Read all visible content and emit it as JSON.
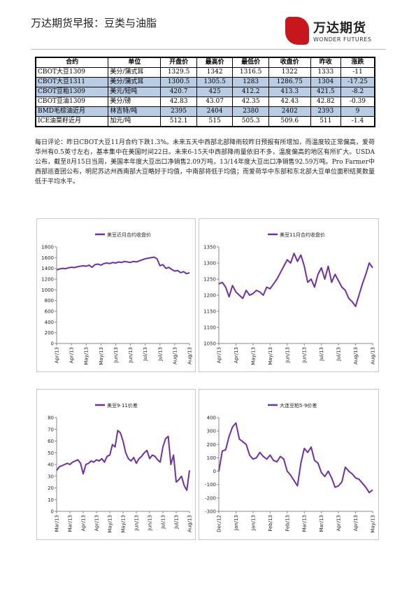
{
  "header": {
    "title": "万达期货早报：豆类与油脂",
    "logo": "万达期货",
    "logo_en": "WONDER FUTURES"
  },
  "table": {
    "headers": [
      "合约",
      "单位",
      "开盘价",
      "最高价",
      "最低价",
      "收盘价",
      "昨收",
      "涨跌"
    ],
    "rows": [
      [
        "CBOT大豆1309",
        "美分/蒲式耳",
        1329.5,
        1342,
        1316.5,
        1322,
        1333,
        -11
      ],
      [
        "CBOT大豆1311",
        "美分/蒲式耳",
        1300.5,
        1305.5,
        1283,
        1286.75,
        1304,
        -17.25
      ],
      [
        "CBOT豆粕1309",
        "美元/短吨",
        420.7,
        425,
        412.2,
        413.3,
        421.5,
        -8.2
      ],
      [
        "CBOT豆油1309",
        "美分/磅",
        42.83,
        43.07,
        42.35,
        42.43,
        42.82,
        -0.39
      ],
      [
        "BMD毛棕油近月",
        "林吉特/吨",
        2395,
        2404,
        2380,
        2402,
        2393,
        9
      ],
      [
        "ICE油菜籽近月",
        "加元/吨",
        512.1,
        515,
        505.3,
        509.6,
        511,
        -1.4
      ]
    ]
  },
  "comment": "每日评论：昨日CBOT大豆11月合约下跌1.3%。未来五天中西部北部降雨较昨日预报有所增加，而温度较正常偏高，爱荷华州有0.5英寸左右，基本集中在美国时间22日。未来6-15天中西部降雨量依旧不多，温度偏高的地区有所扩大。USDA公布，截至8月15日当周，美国本年度大豆出口净销售2.09万吨，13/14年度大豆出口净销售92.59万吨。Pro Farmer中西部巡查团公布，明尼苏达州西南部大豆略好于均值，中南部将低于均值；而爱荷华中东部和东北部大豆单位面积结荚数量低于平均水平。",
  "chart_data": [
    {
      "type": "line",
      "categories": [
        "Apr/13",
        null,
        null,
        null,
        null,
        "Apr/13",
        null,
        null,
        null,
        null,
        "May/13",
        null,
        null,
        null,
        null,
        "May/13",
        null,
        null,
        null,
        null,
        "Jun/13",
        null,
        null,
        null,
        null,
        "Jun/13",
        null,
        null,
        null,
        null,
        "Jul/13",
        null,
        null,
        null,
        null,
        "Jul/13",
        null,
        null,
        null,
        null,
        "Aug/13",
        null,
        null,
        null,
        null,
        "Aug/13"
      ],
      "series": [
        {
          "name": "美豆近月合约收盘价",
          "color": "#7030a0",
          "values": [
            1370,
            1390,
            1400,
            1395,
            1410,
            1420,
            1415,
            1430,
            1440,
            1450,
            1440,
            1460,
            1420,
            1470,
            1480,
            1460,
            1490,
            1500,
            1490,
            1510,
            1500,
            1520,
            1510,
            1530,
            1520,
            1510,
            1530,
            1520,
            1540,
            1560,
            1580,
            1590,
            1600,
            1610,
            1580,
            1450,
            1470,
            1400,
            1420,
            1380,
            1350,
            1360,
            1320,
            1340,
            1300,
            1320
          ]
        }
      ],
      "ylim": [
        0,
        1800
      ],
      "yticks": [
        0,
        200,
        400,
        600,
        800,
        1000,
        1200,
        1400,
        1600,
        1800
      ]
    },
    {
      "type": "line",
      "categories": [
        "Apr/13",
        null,
        null,
        null,
        null,
        "Apr/13",
        null,
        null,
        null,
        null,
        "May/13",
        null,
        null,
        null,
        null,
        "May/13",
        null,
        null,
        null,
        null,
        "Jun/13",
        null,
        null,
        null,
        null,
        "Jun/13",
        null,
        null,
        null,
        null,
        "Jul/13",
        null,
        null,
        null,
        null,
        "Jul/13",
        null,
        null,
        null,
        null,
        "Aug/13",
        null,
        null,
        null,
        null,
        "Aug/13"
      ],
      "series": [
        {
          "name": "美豆11月合约收盘价",
          "color": "#7030a0",
          "values": [
            1235,
            1240,
            1225,
            1195,
            1230,
            1210,
            1200,
            1190,
            1215,
            1200,
            1205,
            1215,
            1210,
            1200,
            1225,
            1220,
            1235,
            1250,
            1270,
            1290,
            1310,
            1300,
            1330,
            1305,
            1325,
            1290,
            1240,
            1250,
            1225,
            1265,
            1285,
            1250,
            1290,
            1240,
            1265,
            1245,
            1225,
            1215,
            1190,
            1180,
            1165,
            1200,
            1235,
            1265,
            1300,
            1285
          ]
        }
      ],
      "ylim": [
        1050,
        1350
      ],
      "yticks": [
        1050,
        1100,
        1150,
        1200,
        1250,
        1300,
        1350
      ]
    },
    {
      "type": "line",
      "categories": [
        "Mar/13",
        null,
        null,
        null,
        null,
        "Mar/13",
        null,
        null,
        null,
        null,
        "Apr/13",
        null,
        null,
        null,
        null,
        "Apr/13",
        null,
        null,
        null,
        null,
        "May/13",
        null,
        null,
        null,
        null,
        "May/13",
        null,
        null,
        null,
        null,
        "Jun/13",
        null,
        null,
        null,
        null,
        "Jun/13",
        null,
        null,
        null,
        null,
        "Jul/13",
        null,
        null,
        null,
        null,
        "Jul/13",
        null,
        null,
        null,
        null,
        "Aug/13"
      ],
      "series": [
        {
          "name": "美豆9-11价差",
          "color": "#7030a0",
          "values": [
            35,
            38,
            39,
            40,
            41,
            40,
            42,
            43,
            44,
            41,
            32,
            40,
            41,
            43,
            42,
            44,
            43,
            45,
            42,
            47,
            48,
            57,
            55,
            69,
            67,
            60,
            50,
            45,
            43,
            46,
            41,
            45,
            47,
            50,
            52,
            45,
            48,
            47,
            44,
            42,
            55,
            62,
            64,
            40,
            48,
            25,
            27,
            30,
            22,
            18,
            35
          ]
        }
      ],
      "ylim": [
        0,
        80
      ],
      "yticks": [
        0,
        10,
        20,
        30,
        40,
        50,
        60,
        70,
        80
      ]
    },
    {
      "type": "line",
      "categories": [
        "Dec/12",
        null,
        null,
        null,
        null,
        "Jan/13",
        null,
        null,
        null,
        null,
        "Jan/13",
        null,
        null,
        null,
        null,
        "Feb/13",
        null,
        null,
        null,
        null,
        "Feb/13",
        null,
        null,
        null,
        null,
        "Mar/13",
        null,
        null,
        null,
        null,
        "Mar/13",
        null,
        null,
        null,
        null,
        "Apr/13",
        null,
        null,
        null,
        null,
        "Apr/13",
        null,
        null,
        null,
        null,
        "May/13"
      ],
      "series": [
        {
          "name": "大连豆粕5-9价差",
          "color": "#7030a0",
          "values": [
            0,
            150,
            160,
            260,
            330,
            360,
            240,
            220,
            200,
            120,
            90,
            100,
            140,
            110,
            90,
            120,
            80,
            70,
            110,
            90,
            0,
            -30,
            -70,
            -110,
            60,
            170,
            140,
            180,
            80,
            60,
            -10,
            -40,
            0,
            -50,
            -120,
            -110,
            -80,
            30,
            0,
            -20,
            -50,
            -60,
            -90,
            -120,
            -160,
            -140
          ]
        }
      ],
      "ylim": [
        -300,
        400
      ],
      "yticks": [
        -300,
        -200,
        -100,
        0,
        100,
        200,
        300,
        400
      ]
    }
  ]
}
